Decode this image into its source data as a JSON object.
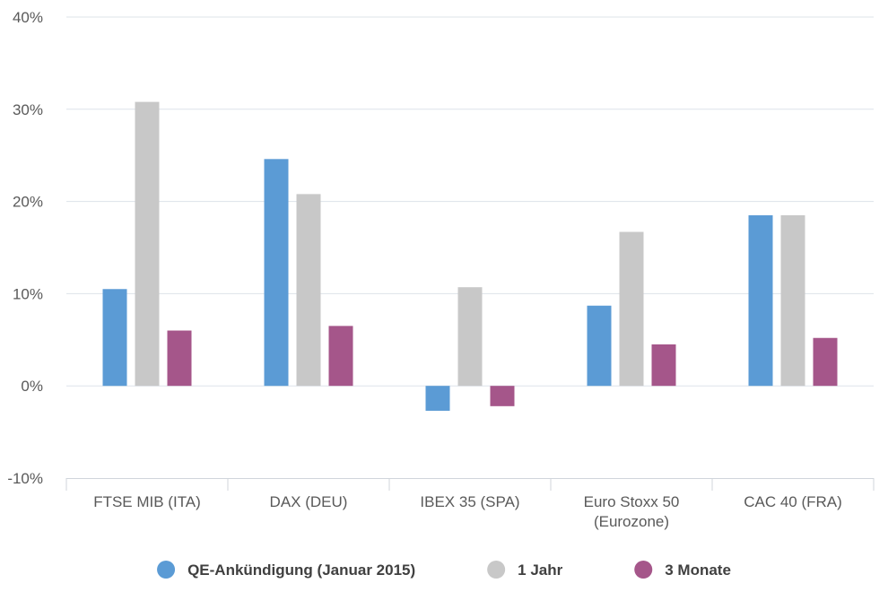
{
  "chart_data": {
    "type": "bar",
    "categories": [
      [
        "FTSE MIB (ITA)"
      ],
      [
        "DAX (DEU)"
      ],
      [
        "IBEX 35 (SPA)"
      ],
      [
        "Euro Stoxx 50",
        "(Eurozone)"
      ],
      [
        "CAC 40 (FRA)"
      ]
    ],
    "series": [
      {
        "name": "QE-Ankündigung (Januar 2015)",
        "color": "#5b9bd5",
        "values": [
          10.5,
          24.6,
          -2.7,
          8.7,
          18.5
        ]
      },
      {
        "name": "1 Jahr",
        "color": "#c8c8c8",
        "values": [
          30.8,
          20.8,
          10.7,
          16.7,
          18.5
        ]
      },
      {
        "name": "3 Monate",
        "color": "#a5568a",
        "values": [
          6.0,
          6.5,
          -2.2,
          4.5,
          5.2
        ]
      }
    ],
    "ylim": [
      -10,
      40
    ],
    "yticks": [
      {
        "value": 40,
        "label": "40%"
      },
      {
        "value": 30,
        "label": "30%"
      },
      {
        "value": 20,
        "label": "20%"
      },
      {
        "value": 10,
        "label": "10%"
      },
      {
        "value": 0,
        "label": "0%"
      },
      {
        "value": -10,
        "label": "-10%"
      }
    ],
    "grid": true,
    "legend_position": "bottom"
  }
}
